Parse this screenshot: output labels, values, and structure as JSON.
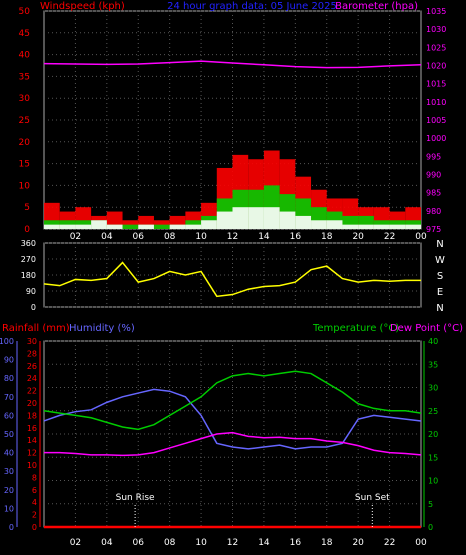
{
  "title": "24 hour graph data: 05 June 2025",
  "colors": {
    "background": "#000000",
    "grid": "#555555",
    "red": "#ff0000",
    "magenta": "#ff00ff",
    "green": "#00cc00",
    "white": "#ffffff",
    "yellow": "#ffff00",
    "blue": "#6666ff",
    "title_blue": "#2222ff"
  },
  "x_axis": {
    "ticks": [
      "02",
      "04",
      "06",
      "08",
      "10",
      "12",
      "14",
      "16",
      "18",
      "20",
      "22",
      "00"
    ],
    "range_hours": [
      0,
      24
    ]
  },
  "labels": {
    "windspeed": "Windspeed (kph)",
    "barometer": "Barometer (hpa)",
    "rainfall": "Rainfall (mm)",
    "humidity": "Humidity (%)",
    "temperature": "Temperature (°C)",
    "dewpoint": "Dew Point (°C)",
    "sun_rise": "Sun Rise",
    "sun_set": "Sun Set",
    "compass": [
      "N",
      "W",
      "S",
      "E",
      "N"
    ]
  },
  "chart_data": [
    {
      "type": "bar",
      "name": "wind",
      "x_hours": [
        0,
        1,
        2,
        3,
        4,
        5,
        6,
        7,
        8,
        9,
        10,
        11,
        12,
        13,
        14,
        15,
        16,
        17,
        18,
        19,
        20,
        21,
        22,
        23,
        24
      ],
      "series": [
        {
          "name": "Windspeed (kph)",
          "color": "#ff0000",
          "values": [
            6,
            4,
            5,
            3,
            4,
            2,
            3,
            2,
            3,
            4,
            6,
            14,
            17,
            16,
            18,
            16,
            12,
            9,
            7,
            7,
            5,
            5,
            4,
            5,
            6
          ]
        },
        {
          "name": "avg",
          "color": "#00cc00",
          "values": [
            2,
            2,
            2,
            2,
            1,
            1,
            1,
            1,
            1,
            2,
            3,
            7,
            9,
            9,
            10,
            8,
            7,
            5,
            4,
            3,
            3,
            2,
            2,
            2,
            2
          ]
        },
        {
          "name": "gust-low",
          "color": "#ffffff",
          "values": [
            1,
            1,
            1,
            2,
            1,
            0,
            1,
            0,
            1,
            1,
            2,
            4,
            5,
            5,
            5,
            4,
            3,
            2,
            2,
            1,
            1,
            1,
            1,
            1,
            1
          ]
        }
      ],
      "ylim": [
        0,
        50
      ],
      "yticks": [
        0,
        5,
        10,
        15,
        20,
        25,
        30,
        35,
        40,
        45,
        50
      ]
    },
    {
      "type": "line",
      "name": "barometer",
      "series": [
        {
          "name": "Barometer (hpa)",
          "color": "#ff00ff",
          "x": [
            0,
            2,
            4,
            6,
            8,
            10,
            12,
            14,
            16,
            18,
            20,
            22,
            24
          ],
          "values": [
            1020.5,
            1020.4,
            1020.3,
            1020.4,
            1020.8,
            1021.2,
            1020.7,
            1020.2,
            1019.7,
            1019.4,
            1019.5,
            1019.9,
            1020.2
          ]
        }
      ],
      "ylim": [
        975,
        1035
      ],
      "yticks": [
        975,
        980,
        985,
        990,
        995,
        1000,
        1005,
        1010,
        1015,
        1020,
        1025,
        1030,
        1035
      ]
    },
    {
      "type": "line",
      "name": "wind direction",
      "series": [
        {
          "name": "direction",
          "color": "#ffff00",
          "x": [
            0,
            1,
            2,
            3,
            4,
            5,
            6,
            7,
            8,
            9,
            10,
            11,
            12,
            13,
            14,
            15,
            16,
            17,
            18,
            19,
            20,
            21,
            22,
            23,
            24
          ],
          "values": [
            130,
            120,
            155,
            150,
            160,
            250,
            140,
            160,
            200,
            180,
            200,
            60,
            70,
            100,
            115,
            120,
            140,
            210,
            230,
            160,
            140,
            150,
            145,
            150,
            150
          ]
        }
      ],
      "ylim": [
        0,
        360
      ],
      "yticks": [
        0,
        90,
        180,
        270,
        360
      ]
    },
    {
      "type": "line",
      "name": "temperature-humidity",
      "x": [
        0,
        1,
        2,
        3,
        4,
        5,
        6,
        7,
        8,
        9,
        10,
        11,
        12,
        13,
        14,
        15,
        16,
        17,
        18,
        19,
        20,
        21,
        22,
        23,
        24
      ],
      "series": [
        {
          "name": "Humidity (%)",
          "color": "#6666ff",
          "axis": "humidity",
          "values": [
            57,
            60,
            62,
            63,
            67,
            70,
            72,
            74,
            73,
            70,
            60,
            45,
            43,
            42,
            43,
            44,
            42,
            43,
            43,
            45,
            58,
            60,
            59,
            58,
            57
          ]
        },
        {
          "name": "Temperature (°C)",
          "color": "#00cc00",
          "axis": "temperature",
          "values": [
            25,
            24.5,
            24,
            23.5,
            22.5,
            21.5,
            21,
            22,
            24,
            26,
            28,
            31,
            32.5,
            33,
            32.5,
            33,
            33.5,
            33,
            31,
            29,
            26.5,
            25.5,
            25,
            25,
            24.5
          ]
        },
        {
          "name": "Dew Point (°C)",
          "color": "#ff00ff",
          "axis": "temperature",
          "values": [
            16,
            16,
            15.8,
            15.5,
            15.5,
            15.4,
            15.5,
            16,
            17,
            18,
            19,
            20,
            20.3,
            19.5,
            19.2,
            19.3,
            19,
            19,
            18.5,
            18.2,
            17.5,
            16.5,
            16,
            15.8,
            15.5
          ]
        },
        {
          "name": "Rainfall (mm)",
          "color": "#ff0000",
          "axis": "rainfall",
          "values": [
            0,
            0,
            0,
            0,
            0,
            0,
            0,
            0,
            0,
            0,
            0,
            0,
            0,
            0,
            0,
            0,
            0,
            0,
            0,
            0,
            0,
            0,
            0,
            0,
            0
          ]
        }
      ],
      "humidity_ylim": [
        0,
        100
      ],
      "humidity_ticks": [
        0,
        10,
        20,
        30,
        40,
        50,
        60,
        70,
        80,
        90,
        100
      ],
      "rainfall_ylim": [
        0,
        30
      ],
      "rainfall_ticks": [
        0,
        2,
        4,
        6,
        8,
        10,
        12,
        14,
        16,
        18,
        20,
        22,
        24,
        26,
        28,
        30
      ],
      "temperature_ylim": [
        0,
        40
      ],
      "temperature_ticks": [
        0,
        5,
        10,
        15,
        20,
        25,
        30,
        35,
        40
      ],
      "sun_rise_hour": 5.8,
      "sun_set_hour": 20.9
    }
  ]
}
